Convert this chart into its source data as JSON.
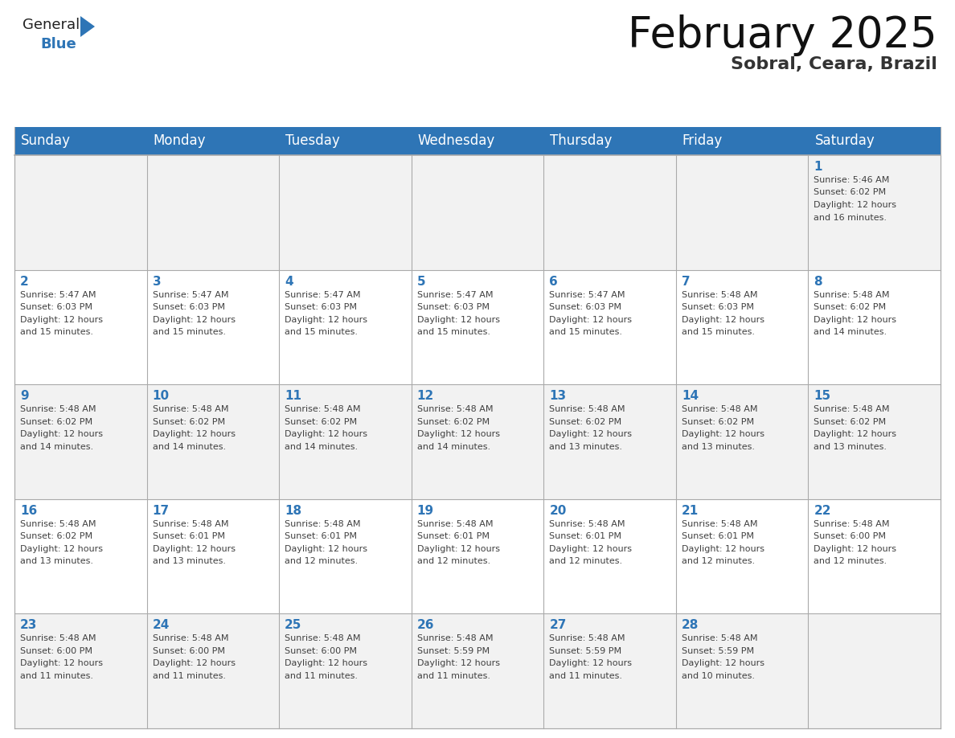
{
  "title": "February 2025",
  "subtitle": "Sobral, Ceara, Brazil",
  "header_bg": "#2E75B6",
  "header_text": "#FFFFFF",
  "day_names": [
    "Sunday",
    "Monday",
    "Tuesday",
    "Wednesday",
    "Thursday",
    "Friday",
    "Saturday"
  ],
  "bg_color": "#FFFFFF",
  "cell_bg_even": "#F2F2F2",
  "cell_bg_odd": "#FFFFFF",
  "day_number_color": "#2E75B6",
  "text_color": "#404040",
  "grid_color": "#AAAAAA",
  "logo_general_color": "#222222",
  "logo_blue_color": "#2E75B6",
  "title_fontsize": 38,
  "subtitle_fontsize": 16,
  "header_fontsize": 12,
  "day_num_fontsize": 11,
  "cell_text_fontsize": 8.0,
  "days": [
    {
      "day": 1,
      "col": 6,
      "row": 0,
      "sunrise": "5:46 AM",
      "sunset": "6:02 PM",
      "daylight": "12 hours and 16 minutes."
    },
    {
      "day": 2,
      "col": 0,
      "row": 1,
      "sunrise": "5:47 AM",
      "sunset": "6:03 PM",
      "daylight": "12 hours and 15 minutes."
    },
    {
      "day": 3,
      "col": 1,
      "row": 1,
      "sunrise": "5:47 AM",
      "sunset": "6:03 PM",
      "daylight": "12 hours and 15 minutes."
    },
    {
      "day": 4,
      "col": 2,
      "row": 1,
      "sunrise": "5:47 AM",
      "sunset": "6:03 PM",
      "daylight": "12 hours and 15 minutes."
    },
    {
      "day": 5,
      "col": 3,
      "row": 1,
      "sunrise": "5:47 AM",
      "sunset": "6:03 PM",
      "daylight": "12 hours and 15 minutes."
    },
    {
      "day": 6,
      "col": 4,
      "row": 1,
      "sunrise": "5:47 AM",
      "sunset": "6:03 PM",
      "daylight": "12 hours and 15 minutes."
    },
    {
      "day": 7,
      "col": 5,
      "row": 1,
      "sunrise": "5:48 AM",
      "sunset": "6:03 PM",
      "daylight": "12 hours and 15 minutes."
    },
    {
      "day": 8,
      "col": 6,
      "row": 1,
      "sunrise": "5:48 AM",
      "sunset": "6:02 PM",
      "daylight": "12 hours and 14 minutes."
    },
    {
      "day": 9,
      "col": 0,
      "row": 2,
      "sunrise": "5:48 AM",
      "sunset": "6:02 PM",
      "daylight": "12 hours and 14 minutes."
    },
    {
      "day": 10,
      "col": 1,
      "row": 2,
      "sunrise": "5:48 AM",
      "sunset": "6:02 PM",
      "daylight": "12 hours and 14 minutes."
    },
    {
      "day": 11,
      "col": 2,
      "row": 2,
      "sunrise": "5:48 AM",
      "sunset": "6:02 PM",
      "daylight": "12 hours and 14 minutes."
    },
    {
      "day": 12,
      "col": 3,
      "row": 2,
      "sunrise": "5:48 AM",
      "sunset": "6:02 PM",
      "daylight": "12 hours and 14 minutes."
    },
    {
      "day": 13,
      "col": 4,
      "row": 2,
      "sunrise": "5:48 AM",
      "sunset": "6:02 PM",
      "daylight": "12 hours and 13 minutes."
    },
    {
      "day": 14,
      "col": 5,
      "row": 2,
      "sunrise": "5:48 AM",
      "sunset": "6:02 PM",
      "daylight": "12 hours and 13 minutes."
    },
    {
      "day": 15,
      "col": 6,
      "row": 2,
      "sunrise": "5:48 AM",
      "sunset": "6:02 PM",
      "daylight": "12 hours and 13 minutes."
    },
    {
      "day": 16,
      "col": 0,
      "row": 3,
      "sunrise": "5:48 AM",
      "sunset": "6:02 PM",
      "daylight": "12 hours and 13 minutes."
    },
    {
      "day": 17,
      "col": 1,
      "row": 3,
      "sunrise": "5:48 AM",
      "sunset": "6:01 PM",
      "daylight": "12 hours and 13 minutes."
    },
    {
      "day": 18,
      "col": 2,
      "row": 3,
      "sunrise": "5:48 AM",
      "sunset": "6:01 PM",
      "daylight": "12 hours and 12 minutes."
    },
    {
      "day": 19,
      "col": 3,
      "row": 3,
      "sunrise": "5:48 AM",
      "sunset": "6:01 PM",
      "daylight": "12 hours and 12 minutes."
    },
    {
      "day": 20,
      "col": 4,
      "row": 3,
      "sunrise": "5:48 AM",
      "sunset": "6:01 PM",
      "daylight": "12 hours and 12 minutes."
    },
    {
      "day": 21,
      "col": 5,
      "row": 3,
      "sunrise": "5:48 AM",
      "sunset": "6:01 PM",
      "daylight": "12 hours and 12 minutes."
    },
    {
      "day": 22,
      "col": 6,
      "row": 3,
      "sunrise": "5:48 AM",
      "sunset": "6:00 PM",
      "daylight": "12 hours and 12 minutes."
    },
    {
      "day": 23,
      "col": 0,
      "row": 4,
      "sunrise": "5:48 AM",
      "sunset": "6:00 PM",
      "daylight": "12 hours and 11 minutes."
    },
    {
      "day": 24,
      "col": 1,
      "row": 4,
      "sunrise": "5:48 AM",
      "sunset": "6:00 PM",
      "daylight": "12 hours and 11 minutes."
    },
    {
      "day": 25,
      "col": 2,
      "row": 4,
      "sunrise": "5:48 AM",
      "sunset": "6:00 PM",
      "daylight": "12 hours and 11 minutes."
    },
    {
      "day": 26,
      "col": 3,
      "row": 4,
      "sunrise": "5:48 AM",
      "sunset": "5:59 PM",
      "daylight": "12 hours and 11 minutes."
    },
    {
      "day": 27,
      "col": 4,
      "row": 4,
      "sunrise": "5:48 AM",
      "sunset": "5:59 PM",
      "daylight": "12 hours and 11 minutes."
    },
    {
      "day": 28,
      "col": 5,
      "row": 4,
      "sunrise": "5:48 AM",
      "sunset": "5:59 PM",
      "daylight": "12 hours and 10 minutes."
    }
  ]
}
